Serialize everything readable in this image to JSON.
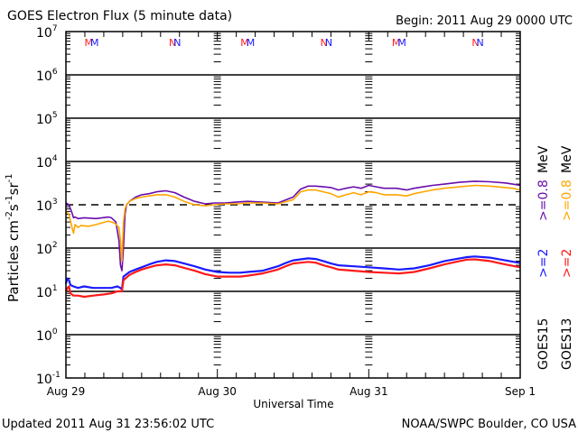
{
  "chart_data": {
    "type": "line",
    "title": "GOES Electron Flux (5 minute data)",
    "begin_label": "Begin: 2011 Aug 29 0000 UTC",
    "xlabel": "Universal Time",
    "ylabel": "Particles cm",
    "ylabel_parts": [
      "Particles cm",
      "-2",
      "s",
      "-1",
      "sr",
      "-1"
    ],
    "yscale": "log",
    "ylim": [
      0.1,
      10000000
    ],
    "xlim_days": [
      0,
      3
    ],
    "x_ticks": [
      {
        "day": 0,
        "label": "Aug 29"
      },
      {
        "day": 1,
        "label": "Aug 30"
      },
      {
        "day": 2,
        "label": "Aug 31"
      },
      {
        "day": 3,
        "label": "Sep 1"
      }
    ],
    "y_ticks": [
      {
        "exp": 7,
        "base": "10",
        "sup": "7"
      },
      {
        "exp": 6,
        "base": "10",
        "sup": "6"
      },
      {
        "exp": 5,
        "base": "10",
        "sup": "5"
      },
      {
        "exp": 4,
        "base": "10",
        "sup": "4"
      },
      {
        "exp": 3,
        "base": "10",
        "sup": "3"
      },
      {
        "exp": 2,
        "base": "10",
        "sup": "2"
      },
      {
        "exp": 1,
        "base": "10",
        "sup": "1"
      },
      {
        "exp": 0,
        "base": "10",
        "sup": "0"
      },
      {
        "exp": -1,
        "base": "10",
        "sup": "-1"
      }
    ],
    "threshold": {
      "value": 1000,
      "style": "dashed"
    },
    "gridlines_decades": [
      6,
      5,
      4,
      2,
      1,
      0
    ],
    "orbit_markers": [
      {
        "day": 0.17,
        "label": "MM"
      },
      {
        "day": 0.72,
        "label": "NN"
      },
      {
        "day": 1.2,
        "label": "MM"
      },
      {
        "day": 1.72,
        "label": "NN"
      },
      {
        "day": 2.2,
        "label": "MM"
      },
      {
        "day": 2.72,
        "label": "NN"
      }
    ],
    "legend": [
      {
        "satellite": "GOES15",
        "channel": ">=2",
        "unit": "",
        "color": "#1a1aff"
      },
      {
        "satellite": "GOES15",
        "channel": ">=0.8",
        "unit": "MeV",
        "color": "#6a0dad"
      },
      {
        "satellite": "GOES13",
        "channel": ">=2",
        "unit": "",
        "color": "#ff1a1a"
      },
      {
        "satellite": "GOES13",
        "channel": ">=0.8",
        "unit": "MeV",
        "color": "#ffa500"
      }
    ],
    "legend_text": {
      "g15": "GOES15",
      "g15_ch1": ">=2",
      "g15_ch2": ">=0.8",
      "g15_unit": "MeV",
      "g13": "GOES13",
      "g13_ch1": ">=2",
      "g13_ch2": ">=0.8",
      "g13_unit": "MeV"
    },
    "series": [
      {
        "name": "GOES15 >=0.8 MeV",
        "color": "#6a0dad",
        "x": [
          0,
          0.02,
          0.04,
          0.05,
          0.06,
          0.08,
          0.12,
          0.2,
          0.28,
          0.3,
          0.33,
          0.35,
          0.36,
          0.37,
          0.38,
          0.39,
          0.4,
          0.42,
          0.46,
          0.5,
          0.55,
          0.6,
          0.66,
          0.72,
          0.78,
          0.85,
          0.92,
          0.98,
          1.05,
          1.12,
          1.2,
          1.3,
          1.4,
          1.5,
          1.55,
          1.6,
          1.65,
          1.7,
          1.75,
          1.8,
          1.85,
          1.9,
          1.95,
          2.0,
          2.05,
          2.1,
          2.18,
          2.25,
          2.3,
          2.36,
          2.42,
          2.5,
          2.6,
          2.7,
          2.8,
          2.9,
          2.95,
          3.0
        ],
        "y": [
          1100,
          1000,
          650,
          500,
          520,
          480,
          500,
          480,
          520,
          500,
          400,
          150,
          40,
          30,
          100,
          600,
          1000,
          1200,
          1500,
          1700,
          1800,
          2000,
          2100,
          1900,
          1500,
          1200,
          1050,
          1100,
          1100,
          1150,
          1200,
          1150,
          1100,
          1500,
          2300,
          2700,
          2700,
          2600,
          2500,
          2200,
          2400,
          2600,
          2400,
          2800,
          2600,
          2400,
          2400,
          2200,
          2400,
          2600,
          2800,
          3000,
          3300,
          3500,
          3400,
          3200,
          3000,
          2800
        ]
      },
      {
        "name": "GOES13 >=0.8 MeV",
        "color": "#ffa500",
        "x": [
          0,
          0.02,
          0.04,
          0.05,
          0.06,
          0.08,
          0.1,
          0.15,
          0.2,
          0.28,
          0.32,
          0.35,
          0.36,
          0.37,
          0.38,
          0.39,
          0.4,
          0.42,
          0.46,
          0.5,
          0.55,
          0.6,
          0.66,
          0.72,
          0.78,
          0.85,
          0.92,
          0.98,
          1.05,
          1.12,
          1.2,
          1.3,
          1.4,
          1.5,
          1.55,
          1.6,
          1.65,
          1.7,
          1.75,
          1.8,
          1.85,
          1.9,
          1.95,
          2.0,
          2.05,
          2.1,
          2.18,
          2.25,
          2.3,
          2.36,
          2.42,
          2.5,
          2.6,
          2.7,
          2.8,
          2.9,
          2.95,
          3.0
        ],
        "y": [
          700,
          600,
          300,
          220,
          350,
          300,
          330,
          320,
          350,
          420,
          380,
          300,
          150,
          50,
          400,
          800,
          1000,
          1200,
          1400,
          1500,
          1600,
          1700,
          1700,
          1500,
          1200,
          1000,
          950,
          1000,
          1050,
          1050,
          1100,
          1100,
          1050,
          1300,
          2000,
          2200,
          2200,
          2000,
          1800,
          1500,
          1700,
          1900,
          1700,
          2000,
          1900,
          1700,
          1700,
          1600,
          1800,
          2000,
          2200,
          2400,
          2600,
          2800,
          2700,
          2500,
          2400,
          2200
        ]
      },
      {
        "name": "GOES15 >=2 MeV",
        "color": "#1a1aff",
        "x": [
          0,
          0.01,
          0.02,
          0.03,
          0.05,
          0.08,
          0.12,
          0.18,
          0.25,
          0.3,
          0.34,
          0.36,
          0.37,
          0.38,
          0.42,
          0.46,
          0.5,
          0.55,
          0.6,
          0.66,
          0.72,
          0.78,
          0.85,
          0.92,
          1.0,
          1.08,
          1.15,
          1.2,
          1.3,
          1.4,
          1.45,
          1.5,
          1.55,
          1.6,
          1.65,
          1.7,
          1.75,
          1.8,
          1.9,
          2.0,
          2.1,
          2.2,
          2.3,
          2.4,
          2.5,
          2.6,
          2.65,
          2.7,
          2.8,
          2.9,
          3.0
        ],
        "y": [
          15,
          20,
          18,
          14,
          13,
          12,
          13,
          12,
          12,
          12,
          13,
          12,
          11,
          22,
          28,
          32,
          36,
          42,
          48,
          52,
          50,
          44,
          38,
          32,
          28,
          27,
          27,
          28,
          30,
          38,
          45,
          52,
          55,
          58,
          56,
          50,
          44,
          40,
          38,
          36,
          34,
          32,
          34,
          40,
          50,
          58,
          62,
          64,
          60,
          52,
          45
        ]
      },
      {
        "name": "GOES13 >=2 MeV",
        "color": "#ff1a1a",
        "x": [
          0,
          0.01,
          0.02,
          0.03,
          0.05,
          0.08,
          0.12,
          0.18,
          0.25,
          0.3,
          0.34,
          0.36,
          0.37,
          0.38,
          0.42,
          0.46,
          0.5,
          0.55,
          0.6,
          0.66,
          0.72,
          0.78,
          0.85,
          0.92,
          1.0,
          1.08,
          1.15,
          1.2,
          1.3,
          1.4,
          1.45,
          1.5,
          1.55,
          1.6,
          1.65,
          1.7,
          1.75,
          1.8,
          1.9,
          2.0,
          2.1,
          2.2,
          2.3,
          2.4,
          2.5,
          2.6,
          2.65,
          2.7,
          2.8,
          2.9,
          3.0
        ],
        "y": [
          10,
          12,
          13,
          9,
          8,
          8,
          7.5,
          8,
          8.5,
          9,
          10,
          10,
          10,
          18,
          24,
          28,
          32,
          36,
          40,
          42,
          40,
          35,
          30,
          25,
          22,
          22,
          22,
          23,
          26,
          32,
          38,
          44,
          46,
          48,
          46,
          40,
          36,
          32,
          30,
          28,
          27,
          26,
          28,
          34,
          42,
          50,
          54,
          55,
          50,
          42,
          36
        ]
      }
    ]
  },
  "footer": {
    "updated": "Updated 2011 Aug 31 23:56:02 UTC",
    "credit": "NOAA/SWPC Boulder, CO USA"
  }
}
